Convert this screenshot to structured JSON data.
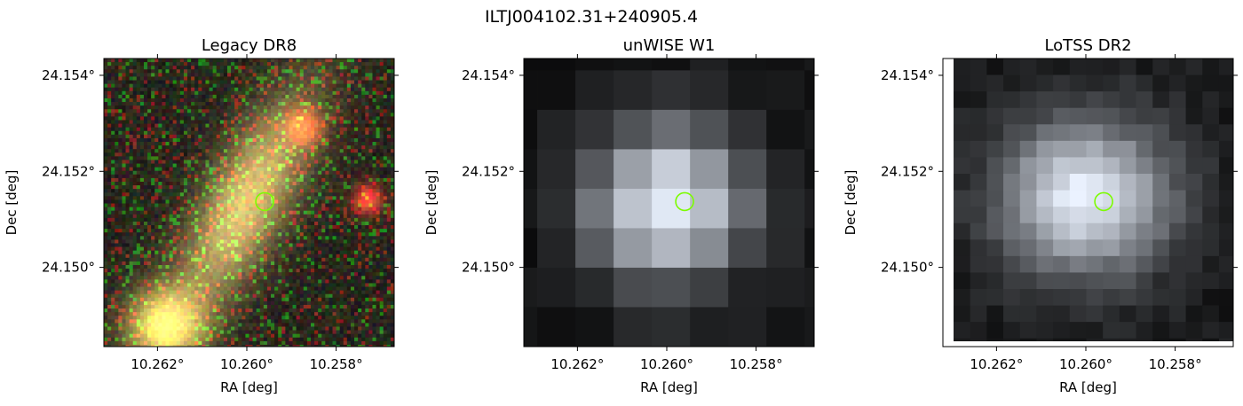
{
  "figure": {
    "title": "ILTJ004102.31+240905.4"
  },
  "colors": {
    "marker": "#7cfc00",
    "axes": "#000000",
    "background": "#ffffff"
  },
  "chart_data": [
    {
      "type": "heatmap",
      "title": "Legacy DR8",
      "xlabel": "RA [deg]",
      "ylabel": "Dec [deg]",
      "xlim": [
        10.2632,
        10.2567
      ],
      "ylim": [
        24.14835,
        24.15435
      ],
      "xticks": [
        10.262,
        10.26,
        10.258
      ],
      "xtick_labels": [
        "10.262°",
        "10.260°",
        "10.258°"
      ],
      "yticks": [
        24.154,
        24.152,
        24.15
      ],
      "ytick_labels": [
        "24.154°",
        "24.152°",
        "24.150°"
      ],
      "marker": {
        "ra": 10.2596,
        "dec": 24.15137
      },
      "image": "rgb-optical-cutout"
    },
    {
      "type": "heatmap",
      "title": "unWISE W1",
      "xlabel": "RA [deg]",
      "ylabel": "Dec [deg]",
      "xlim": [
        10.2632,
        10.2567
      ],
      "ylim": [
        24.14835,
        24.15435
      ],
      "xticks": [
        10.262,
        10.26,
        10.258
      ],
      "xtick_labels": [
        "10.262°",
        "10.260°",
        "10.258°"
      ],
      "yticks": [
        24.154,
        24.152,
        24.15
      ],
      "ytick_labels": [
        "24.154°",
        "24.152°",
        "24.150°"
      ],
      "marker": {
        "ra": 10.2596,
        "dec": 24.15137
      },
      "image": "grayscale-infrared-cutout"
    },
    {
      "type": "heatmap",
      "title": "LoTSS DR2",
      "xlabel": "RA [deg]",
      "ylabel": "Dec [deg]",
      "xlim": [
        10.2632,
        10.2567
      ],
      "ylim": [
        24.14835,
        24.15435
      ],
      "xticks": [
        10.262,
        10.26,
        10.258
      ],
      "xtick_labels": [
        "10.262°",
        "10.260°",
        "10.258°"
      ],
      "yticks": [
        24.154,
        24.152,
        24.15
      ],
      "ytick_labels": [
        "24.154°",
        "24.152°",
        "24.150°"
      ],
      "marker": {
        "ra": 10.2596,
        "dec": 24.15137
      },
      "image": "grayscale-radio-cutout"
    }
  ]
}
